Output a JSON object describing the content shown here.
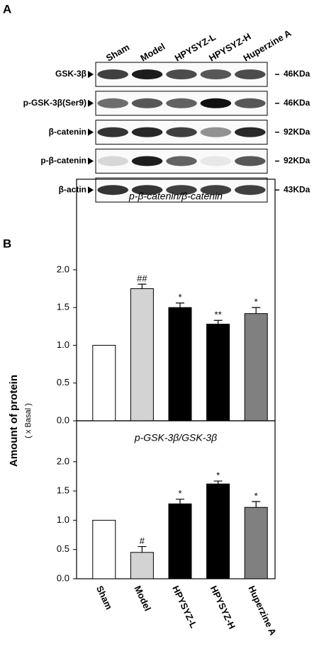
{
  "panel_a": {
    "label": "A",
    "lanes": [
      "Sham",
      "Model",
      "HPYSYZ-L",
      "HPYSYZ-H",
      "Huperzine A"
    ],
    "rows": [
      {
        "name": "GSK-3β",
        "size": "46KDa"
      },
      {
        "name": "p-GSK-3β(Ser9)",
        "size": "46KDa"
      },
      {
        "name": "β-catenin",
        "size": "92KDa"
      },
      {
        "name": "p-β-catenin",
        "size": "92KDa"
      },
      {
        "name": "β-actin",
        "size": "43KDa"
      }
    ]
  },
  "panel_b": {
    "label": "B",
    "ylabel": "Amount of protein",
    "ylabel_sub": "( x Basal )"
  },
  "chart_data": [
    {
      "type": "bar",
      "title": "p-β-catenin/β-catenin",
      "values": [
        1.0,
        1.75,
        1.5,
        1.28,
        1.42
      ],
      "errors": [
        null,
        0.06,
        0.06,
        0.05,
        0.08
      ],
      "annotations": [
        null,
        "##",
        "*",
        "**",
        "*"
      ],
      "colors": [
        "#ffffff",
        "#d3d3d3",
        "#000000",
        "#000000",
        "#808080"
      ],
      "ylim": [
        0,
        3.2
      ],
      "yticks": [
        {
          "value": 0,
          "label": "0.0"
        },
        0.5,
        {
          "value": 1,
          "label": "1.0"
        },
        1.5,
        {
          "value": 2,
          "label": "2.0"
        }
      ]
    },
    {
      "type": "bar",
      "title": "p-GSK-3β/GSK-3β",
      "categories": [
        "Sham",
        "Model",
        "HPYSYZ-L",
        "HPYSYZ-H",
        "Huperzine A"
      ],
      "values": [
        1.0,
        0.45,
        1.28,
        1.62,
        1.22
      ],
      "errors": [
        null,
        0.1,
        0.08,
        0.05,
        0.1
      ],
      "annotations": [
        null,
        "#",
        "*",
        "*",
        "*"
      ],
      "colors": [
        "#ffffff",
        "#d3d3d3",
        "#000000",
        "#000000",
        "#808080"
      ],
      "ylim": [
        0,
        2.7
      ],
      "yticks": [
        {
          "value": 0,
          "label": "0.0"
        },
        0.5,
        {
          "value": 1,
          "label": "1.0"
        },
        1.5,
        {
          "value": 2,
          "label": "2.0"
        }
      ]
    }
  ]
}
